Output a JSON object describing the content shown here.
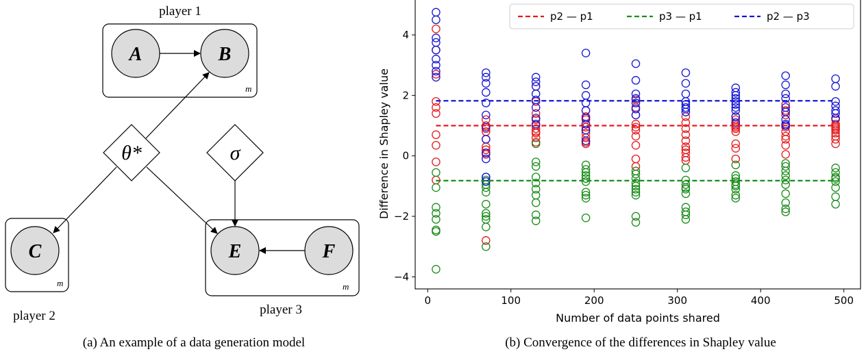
{
  "left_panel": {
    "player1_label": "player 1",
    "player2_label": "player 2",
    "player3_label": "player 3",
    "node_a": "A",
    "node_b": "B",
    "node_c": "C",
    "node_e": "E",
    "node_f": "F",
    "theta": "θ*",
    "sigma": "σ",
    "plate_m": "m",
    "caption": "(a) An example of a data generation model"
  },
  "right_panel": {
    "caption": "(b) Convergence of the differences in Shapley value"
  },
  "colors": {
    "red": "#e41a1c",
    "green": "#1a8c1a",
    "blue": "#1515d6"
  },
  "chart_data": {
    "type": "scatter",
    "xlabel": "Number of data points shared",
    "ylabel": "Difference in Shapley value",
    "xlim": [
      -15,
      520
    ],
    "ylim": [
      -4.4,
      5.2
    ],
    "xticks": [
      "0",
      "100",
      "200",
      "300",
      "400",
      "500"
    ],
    "yticks": [
      "−4",
      "−2",
      "0",
      "2",
      "4"
    ],
    "legend_position": "top-right",
    "legend": [
      "p2 — p1",
      "p3 — p1",
      "p2 — p3"
    ],
    "series": [
      {
        "name": "p2 — p1",
        "color": "#e41a1c",
        "mean": 1.0,
        "points": [
          {
            "x": 10,
            "y": [
              4.2,
              3.5,
              2.7,
              1.8,
              1.6,
              1.4,
              0.7,
              0.35,
              -0.2,
              -0.8
            ]
          },
          {
            "x": 70,
            "y": [
              1.2,
              1.0,
              0.9,
              0.8,
              0.55,
              0.3,
              0.2,
              0.1,
              0.05,
              -2.8
            ]
          },
          {
            "x": 130,
            "y": [
              2.3,
              1.8,
              1.4,
              1.2,
              1.0,
              0.9,
              0.8,
              0.75,
              0.6,
              0.45
            ]
          },
          {
            "x": 190,
            "y": [
              1.5,
              1.3,
              1.2,
              1.05,
              0.95,
              0.85,
              0.75,
              0.6,
              0.45,
              0.4
            ]
          },
          {
            "x": 250,
            "y": [
              1.85,
              1.6,
              1.35,
              1.05,
              0.95,
              0.85,
              0.65,
              0.35,
              -0.1,
              -0.35
            ]
          },
          {
            "x": 310,
            "y": [
              1.3,
              1.1,
              0.9,
              0.7,
              0.5,
              0.3,
              0.2,
              0.1,
              -0.05,
              -0.15
            ]
          },
          {
            "x": 370,
            "y": [
              1.3,
              1.2,
              1.05,
              1.0,
              0.95,
              0.9,
              0.8,
              0.4,
              0.25,
              -0.1
            ]
          },
          {
            "x": 430,
            "y": [
              1.7,
              1.5,
              1.35,
              1.0,
              0.95,
              0.8,
              0.65,
              0.55,
              0.35,
              0.05
            ]
          },
          {
            "x": 490,
            "y": [
              1.2,
              1.05,
              1.0,
              0.95,
              0.9,
              0.85,
              0.75,
              0.65,
              0.55,
              0.4
            ]
          }
        ]
      },
      {
        "name": "p3 — p1",
        "color": "#1a8c1a",
        "mean": -0.82,
        "points": [
          {
            "x": 10,
            "y": [
              -0.55,
              -1.05,
              -1.7,
              -1.9,
              -2.1,
              -2.45,
              -2.5,
              -3.75
            ]
          },
          {
            "x": 70,
            "y": [
              -0.7,
              -0.8,
              -0.95,
              -1.05,
              -1.2,
              -1.6,
              -1.9,
              -2.0,
              -2.1,
              -2.35,
              -3.0
            ]
          },
          {
            "x": 130,
            "y": [
              0.4,
              -0.2,
              -0.35,
              -0.7,
              -0.9,
              -1.1,
              -1.3,
              -1.55,
              -1.95,
              -2.15
            ]
          },
          {
            "x": 190,
            "y": [
              -0.3,
              -0.45,
              -0.55,
              -0.65,
              -0.75,
              -0.85,
              -1.2,
              -1.3,
              -1.4,
              -2.05
            ]
          },
          {
            "x": 250,
            "y": [
              -0.5,
              -0.6,
              -0.75,
              -0.9,
              -1.0,
              -1.1,
              -1.2,
              -1.3,
              -2.0,
              -2.2
            ]
          },
          {
            "x": 310,
            "y": [
              -0.4,
              -0.8,
              -0.95,
              -1.05,
              -1.1,
              -1.25,
              -1.7,
              -1.85,
              -1.95,
              -2.1
            ]
          },
          {
            "x": 370,
            "y": [
              -0.3,
              -0.65,
              -0.75,
              -0.85,
              -0.95,
              -1.0,
              -1.1,
              -1.3,
              -1.4
            ]
          },
          {
            "x": 430,
            "y": [
              -0.25,
              -0.35,
              -0.5,
              -0.65,
              -0.8,
              -0.95,
              -1.25,
              -1.55,
              -1.75,
              -1.85
            ]
          },
          {
            "x": 490,
            "y": [
              -0.4,
              -0.55,
              -0.7,
              -0.75,
              -0.85,
              -1.05,
              -1.35,
              -1.6
            ]
          }
        ]
      },
      {
        "name": "p2 — p3",
        "color": "#1515d6",
        "mean": 1.82,
        "points": [
          {
            "x": 10,
            "y": [
              4.75,
              4.5,
              3.9,
              3.75,
              3.5,
              3.2,
              3.0,
              2.8,
              2.6
            ]
          },
          {
            "x": 70,
            "y": [
              2.75,
              2.6,
              2.4,
              2.1,
              1.75,
              1.35,
              0.95,
              0.55,
              0.1,
              -0.1,
              -0.7,
              -0.85
            ]
          },
          {
            "x": 130,
            "y": [
              2.6,
              2.45,
              2.3,
              2.05,
              1.85,
              1.6,
              1.25,
              1.05
            ]
          },
          {
            "x": 190,
            "y": [
              3.4,
              2.35,
              2.0,
              1.75,
              1.5,
              1.25,
              1.05,
              0.85,
              0.5
            ]
          },
          {
            "x": 250,
            "y": [
              3.05,
              2.5,
              2.05,
              1.9,
              1.75,
              1.55,
              1.35
            ]
          },
          {
            "x": 310,
            "y": [
              2.75,
              2.4,
              2.05,
              1.8,
              1.7,
              1.6,
              1.55,
              1.45
            ]
          },
          {
            "x": 370,
            "y": [
              2.25,
              2.1,
              2.0,
              1.9,
              1.8,
              1.7,
              1.6,
              1.5,
              1.3,
              1.1
            ]
          },
          {
            "x": 430,
            "y": [
              2.65,
              2.35,
              2.05,
              1.9,
              1.6,
              1.45,
              1.2,
              1.05,
              1.0
            ]
          },
          {
            "x": 490,
            "y": [
              2.55,
              2.3,
              1.8,
              1.65,
              1.5,
              1.4,
              1.25
            ]
          }
        ]
      }
    ]
  }
}
